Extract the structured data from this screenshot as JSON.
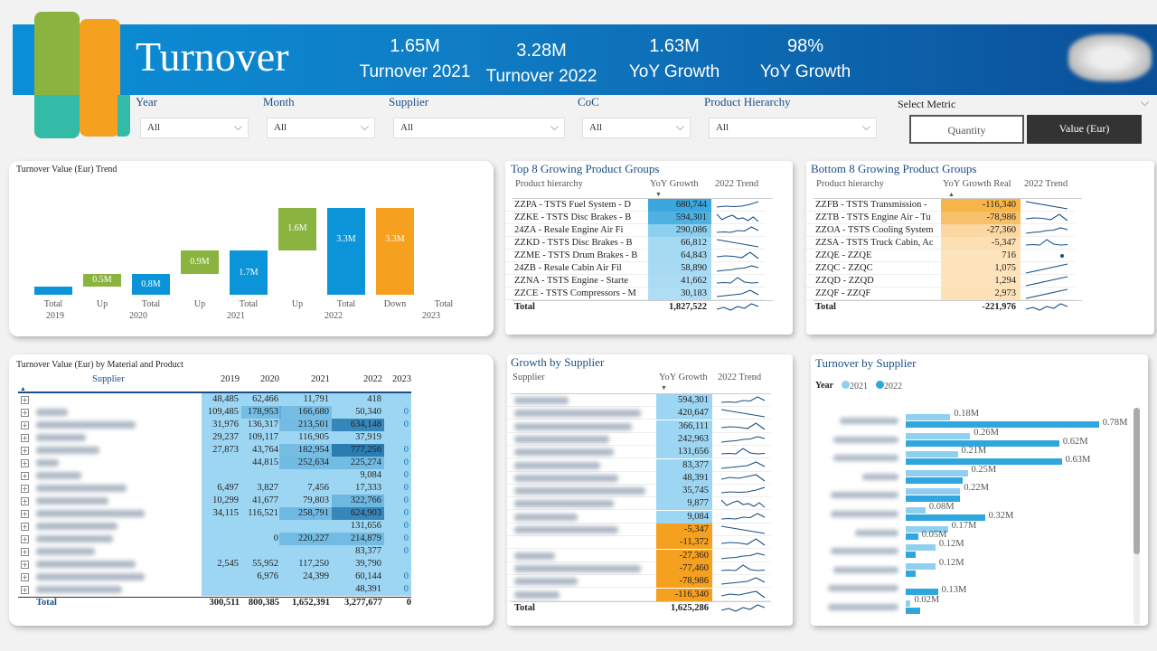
{
  "header": {
    "title": "Turnover",
    "kpis": [
      {
        "value": "1.65M",
        "label": "Turnover 2021"
      },
      {
        "value": "3.28M",
        "label": "Turnover 2022"
      },
      {
        "value": "1.63M",
        "label": "YoY Growth"
      },
      {
        "value": "98%",
        "label": "YoY Growth"
      }
    ]
  },
  "filters": [
    {
      "label": "Year",
      "value": "All"
    },
    {
      "label": "Month",
      "value": "All"
    },
    {
      "label": "Supplier",
      "value": "All"
    },
    {
      "label": "CoC",
      "value": "All"
    },
    {
      "label": "Product Hierarchy",
      "value": "All"
    }
  ],
  "metric": {
    "label": "Select Metric",
    "options": [
      "Quantity",
      "Value (Eur)"
    ],
    "selected": "Value (Eur)"
  },
  "colors": {
    "blue": "#0b94d8",
    "green": "#8ab43f",
    "orange": "#f5a01e",
    "navy": "#1a4f86"
  },
  "chart_data": [
    {
      "type": "bar",
      "subtype": "waterfall",
      "title": "Turnover Value (Eur) Trend",
      "categories": [
        {
          "label": "Total",
          "year": "2019"
        },
        {
          "label": "Up",
          "year": "2020"
        },
        {
          "label": "Total",
          "year": "2020"
        },
        {
          "label": "Up",
          "year": "2021"
        },
        {
          "label": "Total",
          "year": "2021"
        },
        {
          "label": "Up",
          "year": "2022"
        },
        {
          "label": "Total",
          "year": "2022"
        },
        {
          "label": "Down",
          "year": "2023"
        },
        {
          "label": "Total",
          "year": "2023"
        }
      ],
      "year_groups": [
        "2019",
        "2020",
        "2021",
        "2022",
        "2023"
      ],
      "values": [
        0.3,
        0.5,
        0.8,
        0.9,
        1.7,
        1.6,
        3.3,
        -3.3,
        0
      ],
      "data_labels": [
        "",
        "0.5M",
        "0.8M",
        "0.9M",
        "1.7M",
        "1.6M",
        "3.3M",
        "3.3M",
        ""
      ],
      "kinds": [
        "total",
        "up",
        "total",
        "up",
        "total",
        "up",
        "total",
        "down",
        "total"
      ],
      "unit": "M"
    },
    {
      "type": "bar",
      "orientation": "horizontal",
      "title": "Turnover by Supplier",
      "legend_title": "Year",
      "legend": "top-left",
      "series": [
        {
          "name": "2021",
          "color": "#8fd0f0",
          "values": [
            0.18,
            0.26,
            0.21,
            0.25,
            0.22,
            0.08,
            0.17,
            0.12,
            0.12,
            0,
            0.02
          ],
          "labels": [
            "0.18M",
            "0.26M",
            "0.21M",
            "0.25M",
            "0.22M",
            "0.08M",
            "0.17M",
            "0.12M",
            "0.12M",
            "",
            "0.02M"
          ]
        },
        {
          "name": "2022",
          "color": "#2fa6dd",
          "values": [
            0.78,
            0.62,
            0.63,
            0.23,
            0.22,
            0.32,
            0.05,
            0.04,
            0.04,
            0.13,
            0.06
          ],
          "labels": [
            "0.78M",
            "0.62M",
            "0.63M",
            "",
            "",
            "0.32M",
            "0.05M",
            "",
            "",
            "0.13M",
            ""
          ]
        }
      ],
      "unit": "M"
    }
  ],
  "top8": {
    "title": "Top 8 Growing Product Groups",
    "cols": [
      "Product hierarchy",
      "YoY Growth",
      "2022 Trend"
    ],
    "rows": [
      [
        "ZZPA - TSTS Fuel System - D",
        "680,744"
      ],
      [
        "ZZKE - TSTS Disc Brakes - B",
        "594,301"
      ],
      [
        "24ZA - Resale Engine Air Fi",
        "290,086"
      ],
      [
        "ZZKD - TSTS Disc Brakes - B",
        "66,812"
      ],
      [
        "ZZME - TSTS Drum Brakes - B",
        "64,843"
      ],
      [
        "24ZB - Resale Cabin Air Fil",
        "58,890"
      ],
      [
        "ZZNA - TSTS Engine - Starte",
        "41,662"
      ],
      [
        "ZZCE - TSTS Compressors - M",
        "30,183"
      ]
    ],
    "total_label": "Total",
    "total": "1,827,522"
  },
  "bottom8": {
    "title": "Bottom 8 Growing Product Groups",
    "cols": [
      "Product hierarchy",
      "YoY Growth Real",
      "2022 Trend"
    ],
    "rows": [
      [
        "ZZFB - TSTS Transmission -",
        "-116,340"
      ],
      [
        "ZZTB - TSTS Engine Air - Tu",
        "-78,986"
      ],
      [
        "ZZOA - TSTS Cooling System",
        "-27,360"
      ],
      [
        "ZZSA - TSTS Truck Cabin, Ac",
        "-5,347"
      ],
      [
        "ZZQE - ZZQE",
        "716"
      ],
      [
        "ZZQC - ZZQC",
        "1,075"
      ],
      [
        "ZZQD - ZZQD",
        "1,294"
      ],
      [
        "ZZQF - ZZQF",
        "2,973"
      ]
    ],
    "total_label": "Total",
    "total": "-221,976"
  },
  "material": {
    "title": "Turnover Value (Eur) by Material and Product",
    "cols": [
      "Supplier",
      "2019",
      "2020",
      "2021",
      "2022",
      "2023"
    ],
    "rows": [
      [
        "48,485",
        "62,466",
        "11,791",
        "418",
        ""
      ],
      [
        "109,485",
        "178,953",
        "166,680",
        "50,340",
        "0"
      ],
      [
        "31,976",
        "136,317",
        "213,501",
        "634,148",
        "0"
      ],
      [
        "29,237",
        "109,117",
        "116,905",
        "37,919",
        ""
      ],
      [
        "27,873",
        "43,764",
        "182,954",
        "777,256",
        "0"
      ],
      [
        "",
        "44,815",
        "252,634",
        "225,274",
        "0"
      ],
      [
        "",
        "",
        "",
        "9,084",
        "0"
      ],
      [
        "6,497",
        "3,827",
        "7,456",
        "17,333",
        "0"
      ],
      [
        "10,299",
        "41,677",
        "79,803",
        "322,766",
        "0"
      ],
      [
        "34,115",
        "116,521",
        "258,791",
        "624,903",
        "0"
      ],
      [
        "",
        "",
        "",
        "131,656",
        "0"
      ],
      [
        "",
        "0",
        "220,227",
        "214,879",
        "0"
      ],
      [
        "",
        "",
        "",
        "83,377",
        "0"
      ],
      [
        "2,545",
        "55,952",
        "117,250",
        "39,790",
        ""
      ],
      [
        "",
        "6,976",
        "24,399",
        "60,144",
        "0"
      ],
      [
        "",
        "",
        "",
        "48,391",
        "0"
      ]
    ],
    "total_label": "Total",
    "totals": [
      "300,511",
      "800,385",
      "1,652,391",
      "3,277,677",
      "0"
    ]
  },
  "growth": {
    "title": "Growth by Supplier",
    "cols": [
      "Supplier",
      "YoY Growth",
      "2022 Trend"
    ],
    "values": [
      "594,301",
      "420,647",
      "366,111",
      "242,963",
      "131,656",
      "83,377",
      "48,391",
      "35,745",
      "9,877",
      "9,084",
      "-5,347",
      "-11,372",
      "-27,360",
      "-77,460",
      "-78,986",
      "-116,340"
    ],
    "total_label": "Total",
    "total": "1,625,286"
  }
}
